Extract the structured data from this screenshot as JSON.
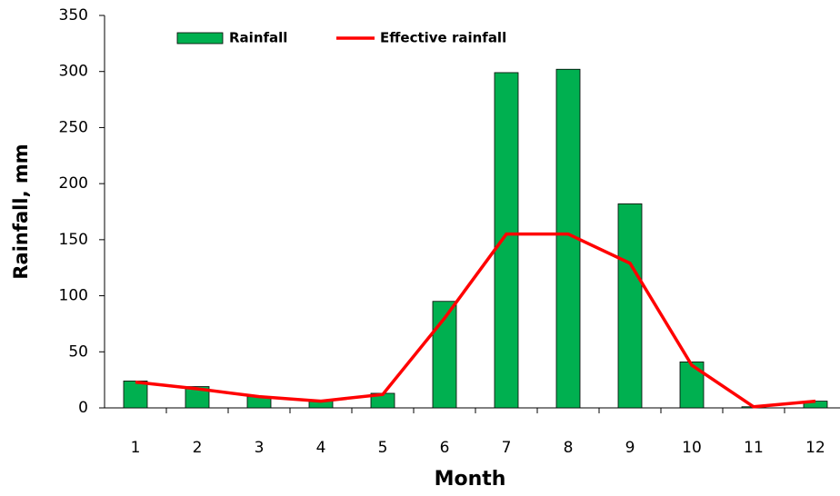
{
  "chart_data": {
    "type": "combo",
    "x_label": "Month",
    "y_label": "Rainfall, mm",
    "categories": [
      "1",
      "2",
      "3",
      "4",
      "5",
      "6",
      "7",
      "8",
      "9",
      "10",
      "11",
      "12"
    ],
    "series": [
      {
        "name": "Rainfall",
        "type": "bar",
        "color": "#00b050",
        "values": [
          24,
          19,
          10,
          7,
          13,
          95,
          299,
          302,
          182,
          41,
          1,
          6
        ]
      },
      {
        "name": "Effective rainfall",
        "type": "line",
        "color": "#ff0000",
        "values": [
          23,
          17,
          10,
          6,
          12,
          80,
          155,
          155,
          129,
          38,
          1,
          6
        ]
      }
    ],
    "ylim": [
      0,
      350
    ],
    "yticks": [
      0,
      50,
      100,
      150,
      200,
      250,
      300,
      350
    ],
    "grid": false,
    "legend": "top"
  }
}
